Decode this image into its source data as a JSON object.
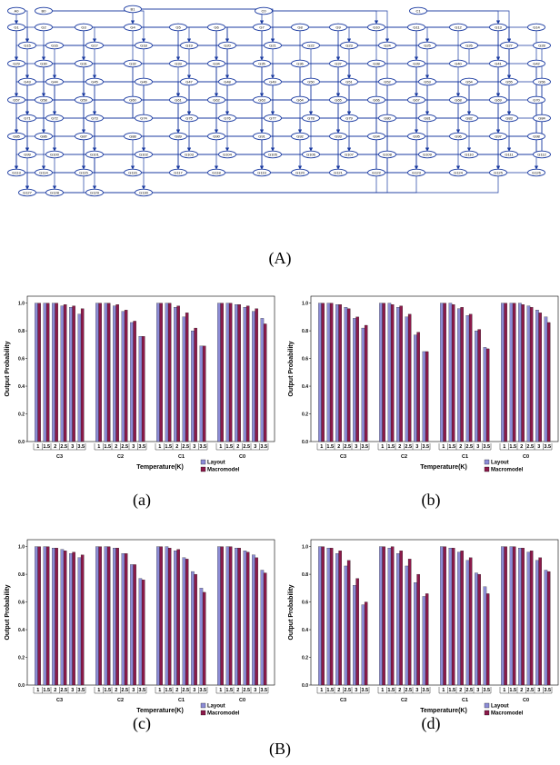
{
  "captions": {
    "A": "(A)",
    "B": "(B)",
    "a": "(a)",
    "b": "(b)",
    "c": "(c)",
    "d": "(d)"
  },
  "colors": {
    "layout": "#8c8cd6",
    "macromodel": "#8b1a4a",
    "node_fill": "#ffffff",
    "node_stroke": "#1a3aa0",
    "edge": "#1a3aa0"
  },
  "network": {
    "nodes": [
      "A0",
      "B0",
      "B1",
      "C0",
      "C1",
      "G1",
      "G2",
      "G3",
      "G4",
      "G5",
      "G6",
      "G7",
      "G8",
      "G9",
      "G10",
      "G11",
      "G12",
      "G13",
      "G14",
      "G15",
      "G16",
      "G17",
      "G18",
      "G19",
      "G20",
      "G21",
      "G22",
      "G23",
      "G24",
      "G25",
      "G26",
      "G27",
      "G28",
      "G29",
      "G30",
      "G31",
      "G32",
      "G33",
      "G34",
      "G35",
      "G36",
      "G37",
      "G38",
      "G39",
      "G40",
      "G41",
      "G42",
      "G43",
      "G44",
      "G45",
      "G46",
      "G47",
      "G48",
      "G49",
      "G50",
      "G51",
      "G52",
      "G53",
      "G54",
      "G55",
      "G56",
      "G57",
      "G58",
      "G59",
      "G60",
      "G61",
      "G62",
      "G63",
      "G64",
      "G65",
      "G66",
      "G67",
      "G68",
      "G69",
      "G70",
      "G71",
      "G72",
      "G73",
      "G74",
      "G75",
      "G76",
      "G77",
      "G78",
      "G79",
      "G80",
      "G81",
      "G82",
      "G83",
      "G84",
      "G85",
      "G86",
      "G87",
      "G88",
      "G89",
      "G90",
      "G91",
      "G92",
      "G93",
      "G94",
      "G95",
      "G96",
      "G97",
      "G98",
      "G99",
      "G100",
      "G101",
      "G102",
      "G103",
      "G104",
      "G105",
      "G106",
      "G107",
      "G108",
      "G109",
      "G110",
      "G111",
      "G112",
      "G113",
      "G114",
      "G115",
      "G116",
      "G117",
      "G118",
      "G119",
      "G120",
      "G121",
      "G122",
      "G123",
      "G124",
      "G125",
      "G126",
      "G127",
      "G128",
      "G129",
      "G130"
    ]
  },
  "chart_data": [
    {
      "id": "a",
      "type": "bar",
      "ylabel": "Output Probability",
      "xlabel": "Temperature(K)",
      "yticks": [
        "0.0",
        "0.2",
        "0.4",
        "0.6",
        "0.8",
        "1.0"
      ],
      "ylim": [
        0,
        1.05
      ],
      "temperatures": [
        "1",
        "1.5",
        "2",
        "2.5",
        "3",
        "3.5"
      ],
      "groups": [
        "C3",
        "C2",
        "C1",
        "C0"
      ],
      "legend": [
        "Layout",
        "Macromodel"
      ],
      "legend_position": "bottom-right",
      "series": [
        {
          "name": "Layout",
          "values": [
            [
              1.0,
              1.0,
              1.0,
              0.98,
              0.97,
              0.92
            ],
            [
              1.0,
              1.0,
              0.98,
              0.94,
              0.86,
              0.76
            ],
            [
              1.0,
              1.0,
              0.97,
              0.9,
              0.8,
              0.69
            ],
            [
              1.0,
              1.0,
              0.99,
              0.97,
              0.94,
              0.89
            ]
          ]
        },
        {
          "name": "Macromodel",
          "values": [
            [
              1.0,
              1.0,
              1.0,
              0.99,
              0.98,
              0.96
            ],
            [
              1.0,
              1.0,
              0.99,
              0.95,
              0.87,
              0.76
            ],
            [
              1.0,
              1.0,
              0.98,
              0.93,
              0.82,
              0.69
            ],
            [
              1.0,
              1.0,
              0.99,
              0.98,
              0.96,
              0.85
            ]
          ]
        }
      ]
    },
    {
      "id": "b",
      "type": "bar",
      "ylabel": "Output Probability",
      "xlabel": "Temperature(K)",
      "yticks": [
        "0.0",
        "0.2",
        "0.4",
        "0.6",
        "0.8",
        "1.0"
      ],
      "ylim": [
        0,
        1.05
      ],
      "temperatures": [
        "1",
        "1.5",
        "2",
        "2.5",
        "3",
        "3.5"
      ],
      "groups": [
        "C3",
        "C2",
        "C1",
        "C0"
      ],
      "legend": [
        "Layout",
        "Macromodel"
      ],
      "legend_position": "bottom-right",
      "series": [
        {
          "name": "Layout",
          "values": [
            [
              1.0,
              1.0,
              0.99,
              0.97,
              0.89,
              0.82
            ],
            [
              1.0,
              1.0,
              0.97,
              0.9,
              0.77,
              0.65
            ],
            [
              1.0,
              1.0,
              0.96,
              0.91,
              0.8,
              0.68
            ],
            [
              1.0,
              1.0,
              1.0,
              0.98,
              0.95,
              0.9
            ]
          ]
        },
        {
          "name": "Macromodel",
          "values": [
            [
              1.0,
              1.0,
              0.99,
              0.96,
              0.9,
              0.84
            ],
            [
              1.0,
              0.99,
              0.98,
              0.92,
              0.79,
              0.65
            ],
            [
              1.0,
              0.99,
              0.97,
              0.92,
              0.81,
              0.67
            ],
            [
              1.0,
              1.0,
              0.99,
              0.97,
              0.93,
              0.86
            ]
          ]
        }
      ]
    },
    {
      "id": "c",
      "type": "bar",
      "ylabel": "Output Probability",
      "xlabel": "Temperature(K)",
      "yticks": [
        "0.0",
        "0.2",
        "0.4",
        "0.6",
        "0.8",
        "1.0"
      ],
      "ylim": [
        0,
        1.05
      ],
      "temperatures": [
        "1",
        "1.5",
        "2",
        "2.5",
        "3",
        "3.5"
      ],
      "groups": [
        "C3",
        "C2",
        "C1",
        "C0"
      ],
      "legend": [
        "Layout",
        "Macromodel"
      ],
      "legend_position": "bottom-right",
      "series": [
        {
          "name": "Layout",
          "values": [
            [
              1.0,
              1.0,
              0.99,
              0.98,
              0.95,
              0.92
            ],
            [
              1.0,
              1.0,
              0.99,
              0.95,
              0.87,
              0.77
            ],
            [
              1.0,
              1.0,
              0.97,
              0.92,
              0.82,
              0.7
            ],
            [
              1.0,
              1.0,
              0.99,
              0.97,
              0.94,
              0.83
            ]
          ]
        },
        {
          "name": "Macromodel",
          "values": [
            [
              1.0,
              1.0,
              0.99,
              0.97,
              0.96,
              0.94
            ],
            [
              1.0,
              1.0,
              0.99,
              0.95,
              0.87,
              0.76
            ],
            [
              1.0,
              0.99,
              0.98,
              0.91,
              0.8,
              0.67
            ],
            [
              1.0,
              1.0,
              0.99,
              0.96,
              0.92,
              0.81
            ]
          ]
        }
      ]
    },
    {
      "id": "d",
      "type": "bar",
      "ylabel": "Output Probability",
      "xlabel": "Temperature(K)",
      "yticks": [
        "0.0",
        "0.2",
        "0.4",
        "0.6",
        "0.8",
        "1.0"
      ],
      "ylim": [
        0,
        1.05
      ],
      "temperatures": [
        "1",
        "1.5",
        "2",
        "2.5",
        "3",
        "3.5"
      ],
      "groups": [
        "C3",
        "C2",
        "C1",
        "C0"
      ],
      "legend": [
        "Layout",
        "Macromodel"
      ],
      "legend_position": "bottom-right",
      "series": [
        {
          "name": "Layout",
          "values": [
            [
              1.0,
              0.99,
              0.95,
              0.86,
              0.72,
              0.58
            ],
            [
              1.0,
              0.99,
              0.95,
              0.86,
              0.74,
              0.64
            ],
            [
              1.0,
              0.99,
              0.96,
              0.9,
              0.81,
              0.71
            ],
            [
              1.0,
              1.0,
              0.99,
              0.96,
              0.9,
              0.83
            ]
          ]
        },
        {
          "name": "Macromodel",
          "values": [
            [
              1.0,
              0.99,
              0.97,
              0.9,
              0.77,
              0.6
            ],
            [
              1.0,
              1.0,
              0.97,
              0.91,
              0.8,
              0.66
            ],
            [
              1.0,
              0.99,
              0.97,
              0.92,
              0.8,
              0.66
            ],
            [
              1.0,
              1.0,
              0.99,
              0.97,
              0.92,
              0.82
            ]
          ]
        }
      ]
    }
  ]
}
